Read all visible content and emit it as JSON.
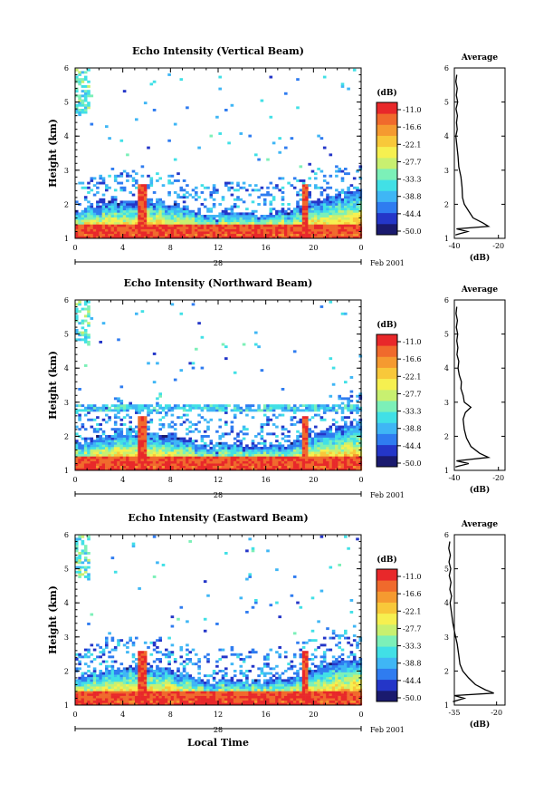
{
  "panels": [
    {
      "id": "vertical",
      "title": "Echo Intensity (Vertical Beam)",
      "avg_values": [
        [
          1.1,
          -39.5
        ],
        [
          1.2,
          -34.0
        ],
        [
          1.28,
          -39.0
        ],
        [
          1.35,
          -24.5
        ],
        [
          1.45,
          -27.0
        ],
        [
          1.6,
          -31.5
        ],
        [
          1.8,
          -33.5
        ],
        [
          2.0,
          -35.5
        ],
        [
          2.2,
          -36.3
        ],
        [
          2.5,
          -36.5
        ],
        [
          2.8,
          -37.0
        ],
        [
          3.1,
          -38.0
        ],
        [
          3.4,
          -38.3
        ],
        [
          3.7,
          -38.8
        ],
        [
          4.0,
          -39.3
        ],
        [
          4.2,
          -38.7
        ],
        [
          4.4,
          -39.0
        ],
        [
          4.6,
          -38.6
        ],
        [
          4.8,
          -39.2
        ],
        [
          5.0,
          -38.5
        ],
        [
          5.2,
          -39.1
        ],
        [
          5.4,
          -38.7
        ],
        [
          5.6,
          -39.3
        ],
        [
          5.8,
          -38.9
        ]
      ],
      "avg_xticks": [
        "-40",
        "-20"
      ]
    },
    {
      "id": "northward",
      "title": "Echo Intensity (Northward Beam)",
      "avg_values": [
        [
          1.1,
          -39.5
        ],
        [
          1.2,
          -33.5
        ],
        [
          1.28,
          -39.0
        ],
        [
          1.38,
          -24.5
        ],
        [
          1.5,
          -28.5
        ],
        [
          1.7,
          -32.5
        ],
        [
          1.95,
          -34.5
        ],
        [
          2.2,
          -35.5
        ],
        [
          2.5,
          -36.0
        ],
        [
          2.7,
          -35.0
        ],
        [
          2.85,
          -32.5
        ],
        [
          3.0,
          -35.5
        ],
        [
          3.2,
          -36.0
        ],
        [
          3.4,
          -37.0
        ],
        [
          3.6,
          -36.8
        ],
        [
          3.8,
          -37.8
        ],
        [
          4.0,
          -38.3
        ],
        [
          4.2,
          -38.0
        ],
        [
          4.4,
          -38.8
        ],
        [
          4.6,
          -38.4
        ],
        [
          4.8,
          -38.9
        ],
        [
          5.0,
          -38.5
        ],
        [
          5.2,
          -39.1
        ],
        [
          5.4,
          -38.6
        ],
        [
          5.6,
          -39.2
        ],
        [
          5.8,
          -38.9
        ]
      ],
      "avg_xticks": [
        "-40",
        "-20"
      ]
    },
    {
      "id": "eastward",
      "title": "Echo Intensity (Eastward Beam)",
      "avg_values": [
        [
          1.1,
          -35.5
        ],
        [
          1.2,
          -31.5
        ],
        [
          1.28,
          -35.0
        ],
        [
          1.35,
          -21.0
        ],
        [
          1.45,
          -24.0
        ],
        [
          1.6,
          -27.5
        ],
        [
          1.8,
          -30.0
        ],
        [
          2.0,
          -32.0
        ],
        [
          2.2,
          -33.0
        ],
        [
          2.5,
          -33.5
        ],
        [
          2.8,
          -34.0
        ],
        [
          3.1,
          -34.8
        ],
        [
          3.4,
          -35.5
        ],
        [
          3.7,
          -36.0
        ],
        [
          4.0,
          -36.5
        ],
        [
          4.2,
          -36.0
        ],
        [
          4.4,
          -36.6
        ],
        [
          4.6,
          -36.2
        ],
        [
          4.8,
          -36.8
        ],
        [
          5.0,
          -36.3
        ],
        [
          5.2,
          -36.9
        ],
        [
          5.4,
          -36.4
        ],
        [
          5.6,
          -37.0
        ],
        [
          5.8,
          -36.6
        ]
      ],
      "avg_xticks": [
        "-35",
        "-20"
      ]
    }
  ],
  "common": {
    "ylabel": "Height (km)",
    "yticks": [
      "1",
      "2",
      "3",
      "4",
      "5",
      "6"
    ],
    "xticks": [
      "0",
      "4",
      "8",
      "12",
      "16",
      "20",
      "0"
    ],
    "date_label": "28",
    "month_label": "Feb 2001",
    "xlabel": "Local Time",
    "colorbar_unit": "(dB)",
    "colorbar_ticks": [
      "-11.0",
      "-16.6",
      "-22.1",
      "-27.7",
      "-33.3",
      "-38.8",
      "-44.4",
      "-50.0"
    ],
    "avg_title": "Average",
    "avg_xlabel": "(dB)"
  },
  "chart_data": [
    {
      "type": "heatmap",
      "title": "Echo Intensity (Vertical Beam)",
      "ylabel": "Height (km)",
      "xticks": [
        "0",
        "4",
        "8",
        "12",
        "16",
        "20",
        "0"
      ],
      "ylim": [
        1,
        6
      ],
      "colorbar_range_dB": [
        -50.0,
        -11.0
      ],
      "colors": [
        "#1a1a6e",
        "#2436c8",
        "#2f7cf0",
        "#3fb6f5",
        "#41e0e6",
        "#7cf0b8",
        "#c8f070",
        "#f6f050",
        "#f8c83a",
        "#f59a30",
        "#f06a2c",
        "#e8282a"
      ]
    },
    {
      "type": "heatmap",
      "title": "Echo Intensity (Northward Beam)",
      "ylabel": "Height (km)",
      "xticks": [
        "0",
        "4",
        "8",
        "12",
        "16",
        "20",
        "0"
      ],
      "ylim": [
        1,
        6
      ],
      "colorbar_range_dB": [
        -50.0,
        -11.0
      ]
    },
    {
      "type": "heatmap",
      "title": "Echo Intensity (Eastward Beam)",
      "ylabel": "Height (km)",
      "xlabel": "Local Time",
      "xticks": [
        "0",
        "4",
        "8",
        "12",
        "16",
        "20",
        "0"
      ],
      "ylim": [
        1,
        6
      ],
      "colorbar_range_dB": [
        -50.0,
        -11.0
      ]
    }
  ]
}
